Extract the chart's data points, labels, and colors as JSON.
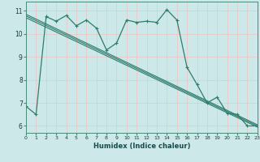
{
  "xlabel": "Humidex (Indice chaleur)",
  "bg_color": "#cce8e8",
  "grid_color": "#b0d4d4",
  "line_color": "#2e7d6e",
  "xlim": [
    0,
    23
  ],
  "ylim": [
    5.7,
    11.4
  ],
  "x_ticks": [
    0,
    1,
    2,
    3,
    4,
    5,
    6,
    7,
    8,
    9,
    10,
    11,
    12,
    13,
    14,
    15,
    16,
    17,
    18,
    19,
    20,
    21,
    22,
    23
  ],
  "y_ticks": [
    6,
    7,
    8,
    9,
    10,
    11
  ],
  "main_series": [
    6.85,
    6.5,
    10.75,
    10.55,
    10.8,
    10.35,
    10.6,
    10.25,
    9.3,
    9.6,
    10.6,
    10.5,
    10.55,
    10.5,
    11.05,
    10.6,
    8.55,
    7.8,
    7.0,
    7.25,
    6.55,
    6.5,
    6.0,
    6.0
  ],
  "trend_lines": [
    {
      "x_start": 0,
      "y_start": 10.85,
      "x_end": 23,
      "y_end": 6.05
    },
    {
      "x_start": 0,
      "y_start": 10.78,
      "x_end": 23,
      "y_end": 6.0
    },
    {
      "x_start": 0,
      "y_start": 10.7,
      "x_end": 23,
      "y_end": 5.95
    }
  ]
}
